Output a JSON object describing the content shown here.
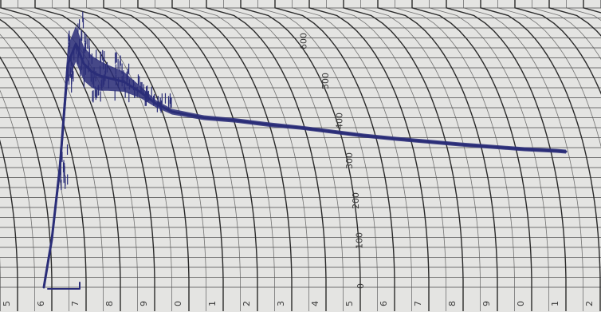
{
  "chart_data": {
    "type": "line",
    "title": "",
    "xlabel": "",
    "ylabel": "",
    "y_tick_labels": [
      "0",
      "100",
      "200",
      "300",
      "400",
      "500",
      "600"
    ],
    "x_tick_labels": [
      "5",
      "6",
      "7",
      "8",
      "9",
      "0",
      "1",
      "2",
      "3",
      "4",
      "5",
      "6",
      "7",
      "8",
      "9",
      "0",
      "1",
      "2"
    ],
    "ylim": [
      0,
      700
    ],
    "x": [
      0.0,
      0.25,
      0.5,
      0.75,
      1.0,
      1.25,
      1.5,
      1.75,
      2.0,
      2.5,
      3.0,
      3.5,
      4.0,
      5.0,
      6.0,
      7.0,
      8.0,
      9.0,
      10.0,
      11.0,
      12.0,
      13.0,
      14.0,
      15.0,
      16.0,
      16.3
    ],
    "series": [
      {
        "values": [
          0,
          120,
          300,
          560,
          610,
          560,
          540,
          530,
          525,
          515,
          490,
          460,
          440,
          425,
          418,
          408,
          400,
          390,
          380,
          372,
          365,
          358,
          352,
          346,
          342,
          340
        ],
        "band": [
          0,
          20,
          60,
          90,
          90,
          85,
          80,
          75,
          65,
          50,
          30,
          18,
          14,
          12,
          11,
          11,
          10,
          10,
          10,
          10,
          10,
          10,
          10,
          10,
          10,
          10
        ]
      }
    ],
    "grid": true,
    "ink_color": "#2a2d78",
    "paper_color": "#e4e4e2"
  }
}
